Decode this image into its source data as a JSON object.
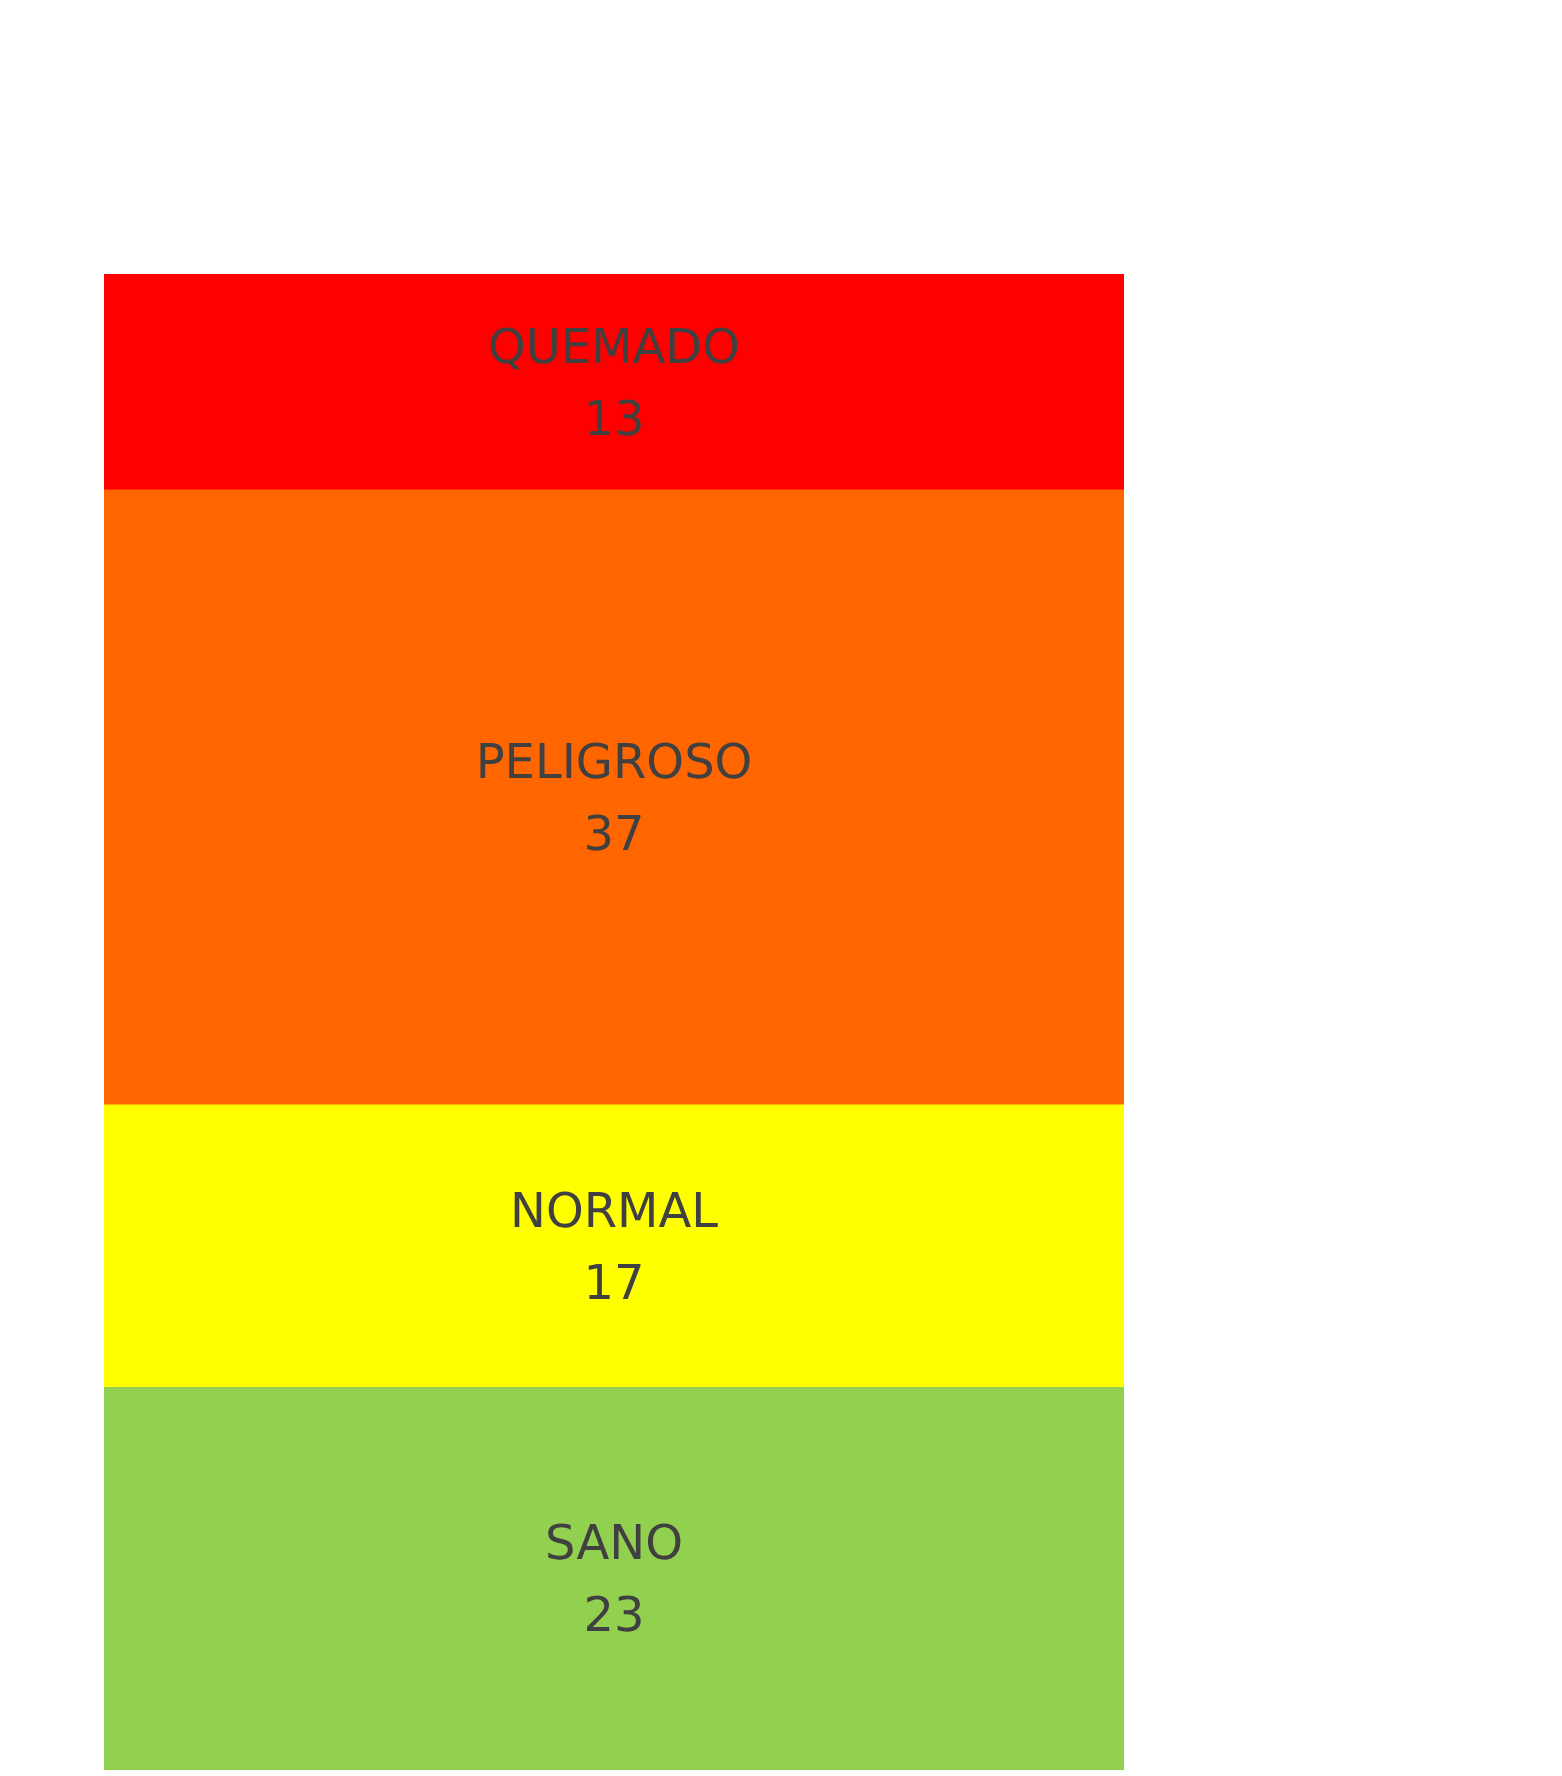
{
  "chart_data": {
    "type": "bar",
    "stacked": true,
    "categories": [
      null
    ],
    "data_labels": true,
    "series": [
      {
        "name": "SANO",
        "color": "#92d050",
        "values": [
          23
        ]
      },
      {
        "name": "NORMAL",
        "color": "#ffff00",
        "values": [
          17
        ]
      },
      {
        "name": "PELIGROSO",
        "color": "#ff6600",
        "values": [
          37
        ]
      },
      {
        "name": "QUEMADO",
        "color": "#ff0000",
        "values": [
          13
        ]
      }
    ]
  }
}
